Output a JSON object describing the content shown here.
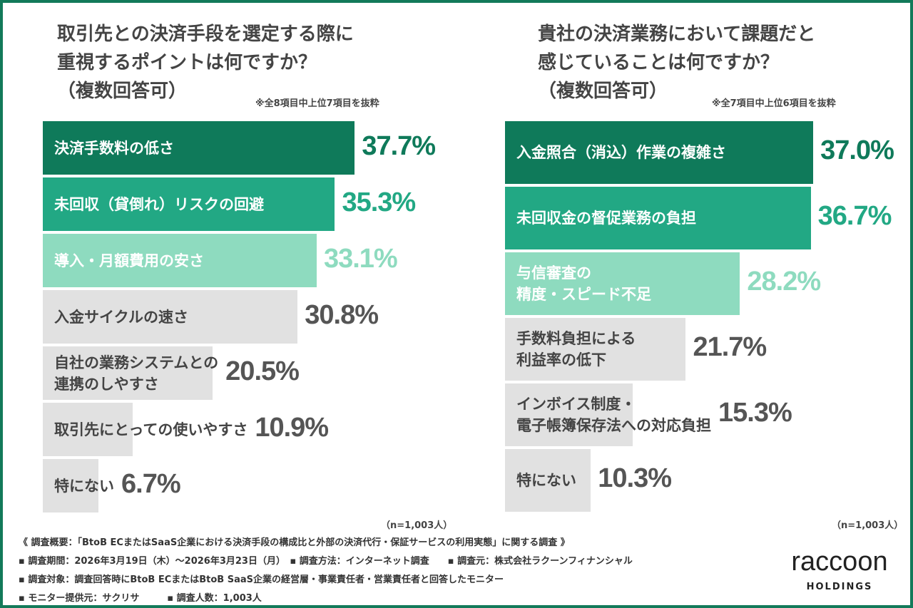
{
  "colors": {
    "dark": "#0f7a5a",
    "mid": "#22a884",
    "light": "#8edbbf",
    "grey": "#e1e1e1",
    "frame": "#137a5a"
  },
  "chart_data": [
    {
      "type": "bar",
      "orientation": "horizontal",
      "title": "取引先との決済手段を選定する際に\n重視するポイントは何ですか？\n（複数回答可）",
      "note": "※全8項目中上位7項目を抜粋",
      "n": "（n=1,003人）",
      "categories": [
        "決済手数料の低さ",
        "未回収（貸倒れ）リスクの回避",
        "導入・月額費用の安さ",
        "入金サイクルの速さ",
        "自社の業務システムとの\n連携のしやすさ",
        "取引先にとっての使いやすさ",
        "特にない"
      ],
      "values": [
        37.7,
        35.3,
        33.1,
        30.8,
        20.5,
        10.9,
        6.7
      ],
      "labels": [
        "37.7%",
        "35.3%",
        "33.1%",
        "30.8%",
        "20.5%",
        "10.9%",
        "6.7%"
      ]
    },
    {
      "type": "bar",
      "orientation": "horizontal",
      "title": "貴社の決済業務において課題だと\n感じていることは何ですか？\n（複数回答可）",
      "note": "※全7項目中上位6項目を抜粋",
      "n": "（n=1,003人）",
      "categories": [
        "入金照合（消込）作業の複雑さ",
        "未回収金の督促業務の負担",
        "与信審査の\n精度・スピード不足",
        "手数料負担による\n利益率の低下",
        "インボイス制度・\n電子帳簿保存法への対応負担",
        "特にない"
      ],
      "values": [
        37.0,
        36.7,
        28.2,
        21.7,
        15.3,
        10.3
      ],
      "labels": [
        "37.0%",
        "36.7%",
        "28.2%",
        "21.7%",
        "15.3%",
        "10.3%"
      ]
    }
  ],
  "footer": [
    "《 調査概要：「BtoB ECまたはSaaS企業における決済手段の構成比と外部の決済代行・保証サービスの利用実態」に関する調査 》",
    "▪ 調査期間：2026年3月19日（木）～2026年3月23日（月）　▪ 調査方法：インターネット調査　　▪ 調査元：株式会社ラクーンフィナンシャル",
    "▪ 調査対象：調査回答時にBtoB ECまたはBtoB SaaS企業の経営層・事業責任者・営業責任者と回答したモニター",
    "▪ モニター提供元：サクリサ　　　▪ 調査人数：1,003人"
  ],
  "logo": {
    "word": "raccoon",
    "sub": "HOLDINGS"
  }
}
